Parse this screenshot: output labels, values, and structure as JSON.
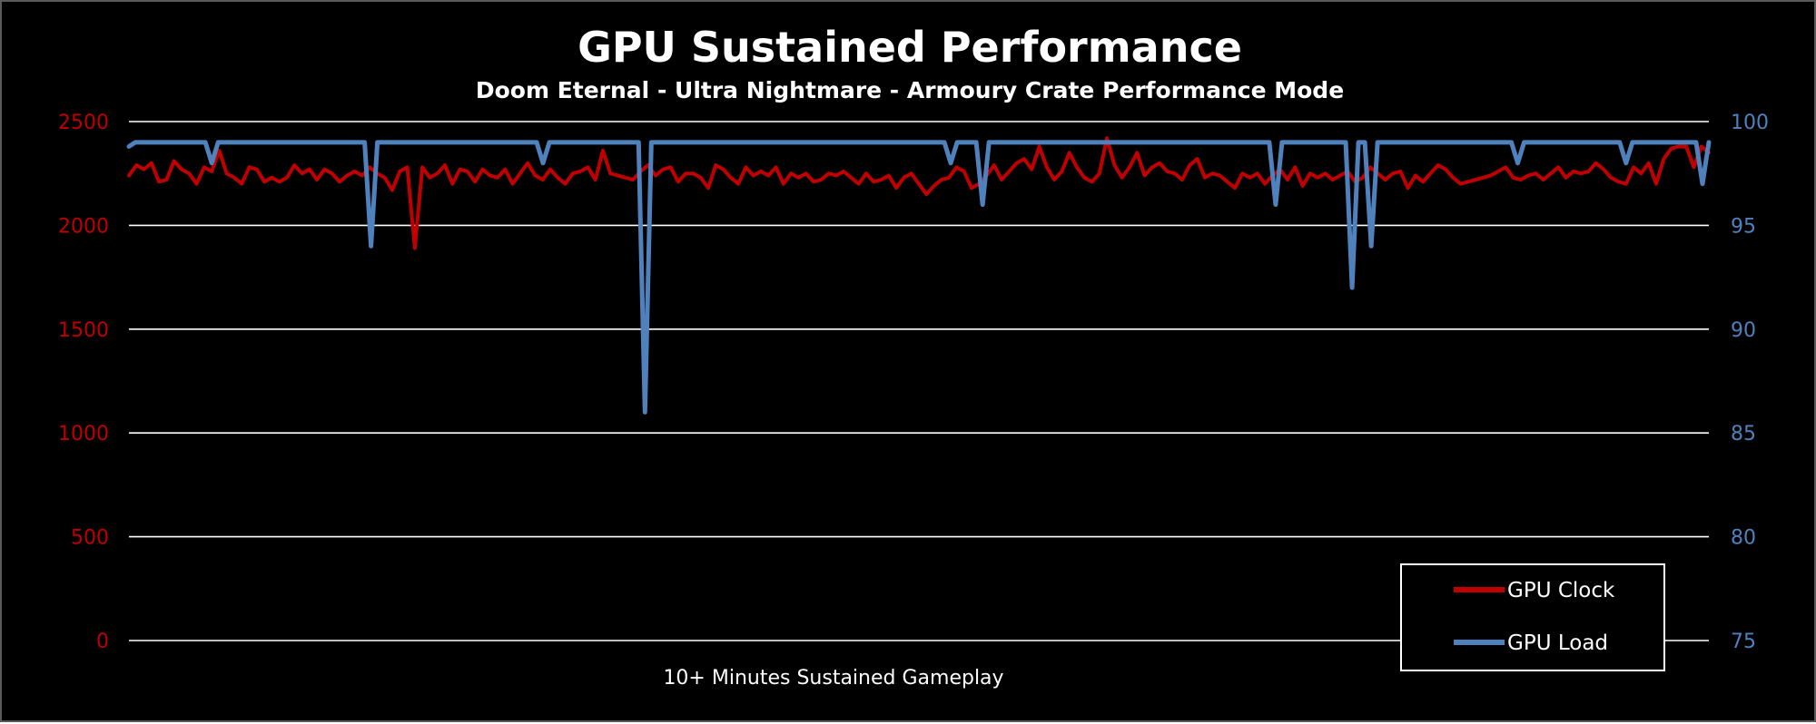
{
  "chart_data": {
    "type": "line",
    "title": "GPU Sustained Performance",
    "subtitle": "Doom Eternal - Ultra Nightmare - Armoury Crate Performance Mode",
    "xlabel": "10+ Minutes Sustained Gameplay",
    "background": "#000000",
    "grid": true,
    "legend_position": "bottom-right",
    "y_left": {
      "ylim": [
        0,
        2500
      ],
      "ticks": [
        "0",
        "500",
        "1000",
        "1500",
        "2000",
        "2500"
      ],
      "color": "#c00000"
    },
    "y_right": {
      "ylim": [
        75,
        100
      ],
      "ticks": [
        "75",
        "80",
        "85",
        "90",
        "95",
        "100"
      ],
      "color": "#4f81bd"
    },
    "series": [
      {
        "name": "GPU Clock",
        "axis": "left",
        "color": "#c00000",
        "values": [
          2240,
          2290,
          2270,
          2300,
          2210,
          2220,
          2310,
          2270,
          2250,
          2200,
          2280,
          2260,
          2360,
          2250,
          2230,
          2200,
          2280,
          2270,
          2210,
          2230,
          2210,
          2230,
          2290,
          2250,
          2270,
          2220,
          2270,
          2250,
          2210,
          2240,
          2260,
          2240,
          2280,
          2250,
          2230,
          2170,
          2260,
          2280,
          1890,
          2280,
          2230,
          2250,
          2290,
          2200,
          2270,
          2260,
          2210,
          2270,
          2240,
          2230,
          2270,
          2200,
          2250,
          2300,
          2240,
          2220,
          2270,
          2230,
          2200,
          2250,
          2260,
          2280,
          2220,
          2360,
          2250,
          2240,
          2230,
          2220,
          2260,
          2290,
          2240,
          2270,
          2280,
          2210,
          2250,
          2250,
          2230,
          2180,
          2290,
          2270,
          2230,
          2200,
          2280,
          2240,
          2260,
          2240,
          2280,
          2200,
          2250,
          2230,
          2250,
          2210,
          2220,
          2250,
          2240,
          2260,
          2230,
          2200,
          2250,
          2210,
          2220,
          2240,
          2180,
          2230,
          2250,
          2200,
          2150,
          2190,
          2220,
          2230,
          2280,
          2260,
          2180,
          2200,
          2240,
          2290,
          2220,
          2260,
          2300,
          2320,
          2270,
          2380,
          2280,
          2220,
          2260,
          2350,
          2280,
          2230,
          2210,
          2250,
          2420,
          2290,
          2230,
          2280,
          2350,
          2240,
          2280,
          2300,
          2260,
          2250,
          2220,
          2290,
          2320,
          2230,
          2250,
          2240,
          2210,
          2180,
          2250,
          2230,
          2250,
          2200,
          2240,
          2270,
          2220,
          2280,
          2190,
          2250,
          2230,
          2250,
          2220,
          2240,
          2260,
          2210,
          2230,
          2280,
          2250,
          2220,
          2250,
          2260,
          2180,
          2240,
          2210,
          2250,
          2290,
          2270,
          2230,
          2200,
          2210,
          2220,
          2230,
          2240,
          2260,
          2280,
          2230,
          2220,
          2240,
          2250,
          2220,
          2250,
          2280,
          2230,
          2260,
          2250,
          2260,
          2300,
          2270,
          2230,
          2210,
          2200,
          2280,
          2250,
          2300,
          2200,
          2320,
          2370,
          2380,
          2380,
          2280,
          2380,
          2350
        ]
      },
      {
        "name": "GPU Load",
        "axis": "right",
        "color": "#4f81bd",
        "values": [
          98.8,
          99,
          99,
          99,
          99,
          99,
          99,
          99,
          99,
          99,
          99,
          99,
          99,
          98,
          99,
          99,
          99,
          99,
          99,
          99,
          99,
          99,
          99,
          99,
          99,
          99,
          99,
          99,
          99,
          99,
          99,
          99,
          99,
          99,
          99,
          99,
          99,
          99,
          94,
          99,
          99,
          99,
          99,
          99,
          99,
          99,
          99,
          99,
          99,
          99,
          99,
          99,
          99,
          99,
          99,
          99,
          99,
          99,
          99,
          99,
          99,
          99,
          99,
          99,
          99,
          98,
          99,
          99,
          99,
          99,
          99,
          99,
          99,
          99,
          99,
          99,
          99,
          99,
          99,
          99,
          99,
          86,
          99,
          99,
          99,
          99,
          99,
          99,
          99,
          99,
          99,
          99,
          99,
          99,
          99,
          99,
          99,
          99,
          99,
          99,
          99,
          99,
          99,
          99,
          99,
          99,
          99,
          99,
          99,
          99,
          99,
          99,
          99,
          99,
          99,
          99,
          99,
          99,
          99,
          99,
          99,
          99,
          99,
          99,
          99,
          99,
          99,
          99,
          99,
          98,
          99,
          99,
          99,
          99,
          96,
          99,
          99,
          99,
          99,
          99,
          99,
          99,
          99,
          99,
          99,
          99,
          99,
          99,
          99,
          99,
          99,
          99,
          99,
          99,
          99,
          99,
          99,
          99,
          99,
          99,
          99,
          99,
          99,
          99,
          99,
          99,
          99,
          99,
          99,
          99,
          99,
          99,
          99,
          99,
          99,
          99,
          99,
          99,
          99,
          99,
          96,
          99,
          99,
          99,
          99,
          99,
          99,
          99,
          99,
          99,
          99,
          99,
          92,
          99,
          99,
          94,
          99,
          99,
          99,
          99,
          99,
          99,
          99,
          99,
          99,
          99,
          99,
          99,
          99,
          99,
          99,
          99,
          99,
          99,
          99,
          99,
          99,
          99,
          98,
          99,
          99,
          99,
          99,
          99,
          99,
          99,
          99,
          99,
          99,
          99,
          99,
          99,
          99,
          99,
          99,
          98,
          99,
          99,
          99,
          99,
          99,
          99,
          99,
          99,
          99,
          99,
          99,
          97,
          99
        ]
      }
    ]
  }
}
